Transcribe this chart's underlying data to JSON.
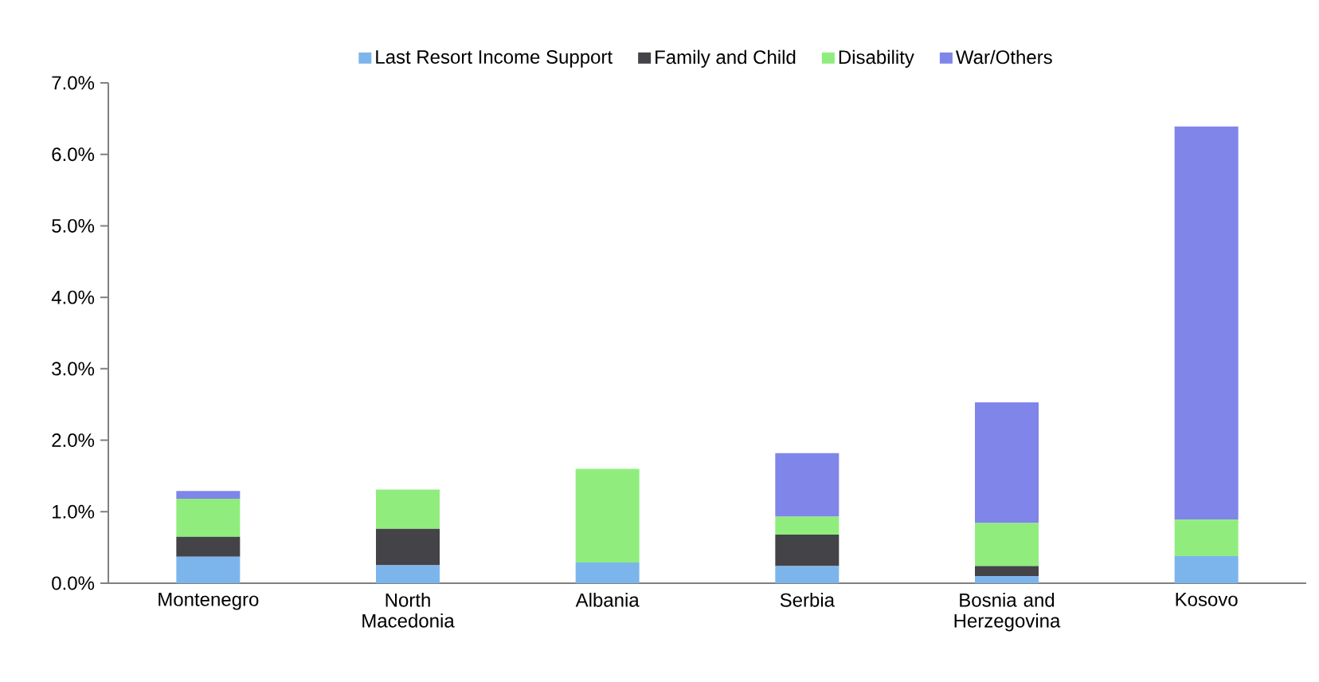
{
  "chart_data": {
    "type": "bar",
    "stacked": true,
    "legend": "top",
    "grid": false,
    "categories": [
      "Montenegro",
      "North Macedonia",
      "Albania",
      "Serbia",
      "Bosnia and Herzegovina",
      "Kosovo"
    ],
    "ylim": [
      0,
      7
    ],
    "yticks": [
      {
        "value": 0,
        "label": "0.0%"
      },
      {
        "value": 1,
        "label": "1.0%"
      },
      {
        "value": 2,
        "label": "2.0%"
      },
      {
        "value": 3,
        "label": "3.0%"
      },
      {
        "value": 4,
        "label": "4.0%"
      },
      {
        "value": 5,
        "label": "5.0%"
      },
      {
        "value": 6,
        "label": "6.0%"
      },
      {
        "value": 7,
        "label": "7.0%"
      }
    ],
    "series": [
      {
        "name": "Last Resort Income Support",
        "color": "#7cb5ec",
        "values": [
          0.37,
          0.25,
          0.29,
          0.24,
          0.1,
          0.38
        ]
      },
      {
        "name": "Family and Child",
        "color": "#434348",
        "values": [
          0.28,
          0.51,
          0,
          0.44,
          0.14,
          0
        ]
      },
      {
        "name": "Disability",
        "color": "#90ed7d",
        "values": [
          0.53,
          0.55,
          1.31,
          0.25,
          0.6,
          0.51
        ]
      },
      {
        "name": "War/Others",
        "color": "#8085e9",
        "values": [
          0.11,
          null,
          null,
          0.89,
          1.69,
          5.5
        ]
      }
    ]
  }
}
